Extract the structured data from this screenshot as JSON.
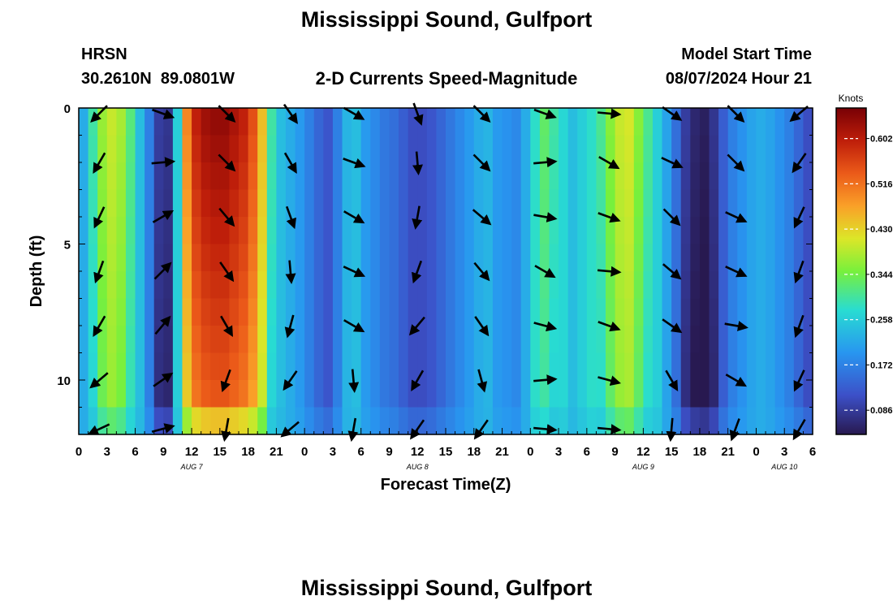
{
  "header": {
    "title": "Mississippi Sound, Gulfport",
    "station_id": "HRSN",
    "station_coords": "30.2610N  89.0801W",
    "subtitle": "2-D Currents Speed-Magnitude",
    "model_start_label": "Model Start Time",
    "model_start_value": "08/07/2024 Hour 21"
  },
  "footer": {
    "title": "Mississippi Sound, Gulfport"
  },
  "chart_data": {
    "type": "heatmap",
    "title": "2-D Currents Speed-Magnitude",
    "xlabel": "Forecast Time(Z)",
    "ylabel": "Depth (ft)",
    "x_range_hours": [
      0,
      78
    ],
    "xtick_labels": [
      "0",
      "3",
      "6",
      "9",
      "12",
      "15",
      "18",
      "21",
      "0",
      "3",
      "6",
      "9",
      "12",
      "15",
      "18",
      "21",
      "0",
      "3",
      "6",
      "9",
      "12",
      "15",
      "18",
      "21",
      "0",
      "3",
      "6"
    ],
    "date_labels": [
      {
        "hour": 12,
        "label": "AUG 7"
      },
      {
        "hour": 36,
        "label": "AUG 8"
      },
      {
        "hour": 60,
        "label": "AUG 9"
      },
      {
        "hour": 75,
        "label": "AUG 10"
      }
    ],
    "y_range_ft": [
      0,
      12
    ],
    "y_inverted": true,
    "ytick_labels": [
      "0",
      "5",
      "10"
    ],
    "ytick_values": [
      0,
      5,
      10
    ],
    "colorbar": {
      "label": "Knots",
      "ticks": [
        "0.086",
        "0.172",
        "0.258",
        "0.344",
        "0.430",
        "0.516",
        "0.602"
      ],
      "tick_values": [
        0.086,
        0.172,
        0.258,
        0.344,
        0.43,
        0.516,
        0.602
      ],
      "range": [
        0.04,
        0.66
      ]
    },
    "speed_profile": {
      "hours": [
        0,
        1,
        2,
        3,
        4,
        5,
        6,
        7,
        8,
        9,
        10,
        11,
        12,
        13,
        14,
        15,
        16,
        17,
        18,
        19,
        20,
        21,
        22,
        23,
        24,
        25,
        26,
        27,
        28,
        29,
        30,
        31,
        32,
        33,
        34,
        35,
        36,
        37,
        38,
        39,
        40,
        41,
        42,
        43,
        44,
        45,
        46,
        47,
        48,
        49,
        50,
        51,
        52,
        53,
        54,
        55,
        56,
        57,
        58,
        59,
        60,
        61,
        62,
        63,
        64,
        65,
        66,
        67,
        68,
        69,
        70,
        71,
        72,
        73,
        74,
        75,
        76,
        77
      ],
      "knots": [
        0.22,
        0.3,
        0.37,
        0.4,
        0.38,
        0.32,
        0.24,
        0.17,
        0.09,
        0.08,
        0.26,
        0.5,
        0.6,
        0.63,
        0.64,
        0.64,
        0.62,
        0.6,
        0.55,
        0.45,
        0.3,
        0.24,
        0.22,
        0.2,
        0.17,
        0.14,
        0.12,
        0.17,
        0.23,
        0.24,
        0.2,
        0.18,
        0.16,
        0.15,
        0.13,
        0.11,
        0.11,
        0.12,
        0.14,
        0.16,
        0.18,
        0.2,
        0.22,
        0.23,
        0.2,
        0.19,
        0.18,
        0.22,
        0.28,
        0.33,
        0.3,
        0.27,
        0.24,
        0.26,
        0.28,
        0.31,
        0.36,
        0.4,
        0.41,
        0.36,
        0.31,
        0.26,
        0.21,
        0.15,
        0.09,
        0.06,
        0.05,
        0.08,
        0.13,
        0.17,
        0.19,
        0.21,
        0.22,
        0.21,
        0.19,
        0.17,
        0.14,
        0.11
      ]
    },
    "depth_rows_ft": [
      0,
      1,
      2,
      3,
      4,
      5,
      6,
      7,
      8,
      9,
      10,
      11,
      12
    ],
    "arrow_depths_ft": [
      0.2,
      2.0,
      4.0,
      6.0,
      8.0,
      10.0,
      11.8
    ],
    "arrow_hours": [
      2.2,
      8.9,
      15.7,
      22.5,
      29.2,
      36.0,
      42.8,
      49.5,
      56.3,
      63.0,
      69.8,
      76.6
    ],
    "arrow_directions_deg": [
      [
        225,
        110,
        135,
        145,
        120,
        160,
        135,
        110,
        95,
        125,
        135,
        230
      ],
      [
        210,
        85,
        135,
        150,
        110,
        175,
        135,
        85,
        120,
        115,
        135,
        215
      ],
      [
        205,
        60,
        140,
        160,
        120,
        190,
        130,
        100,
        110,
        135,
        115,
        205
      ],
      [
        200,
        45,
        145,
        175,
        115,
        200,
        140,
        120,
        95,
        130,
        115,
        200
      ],
      [
        210,
        40,
        150,
        195,
        120,
        220,
        145,
        105,
        110,
        125,
        100,
        200
      ],
      [
        230,
        55,
        200,
        215,
        175,
        210,
        165,
        85,
        105,
        150,
        120,
        205
      ],
      [
        245,
        75,
        190,
        230,
        190,
        215,
        215,
        95,
        95,
        185,
        200,
        210
      ]
    ]
  }
}
